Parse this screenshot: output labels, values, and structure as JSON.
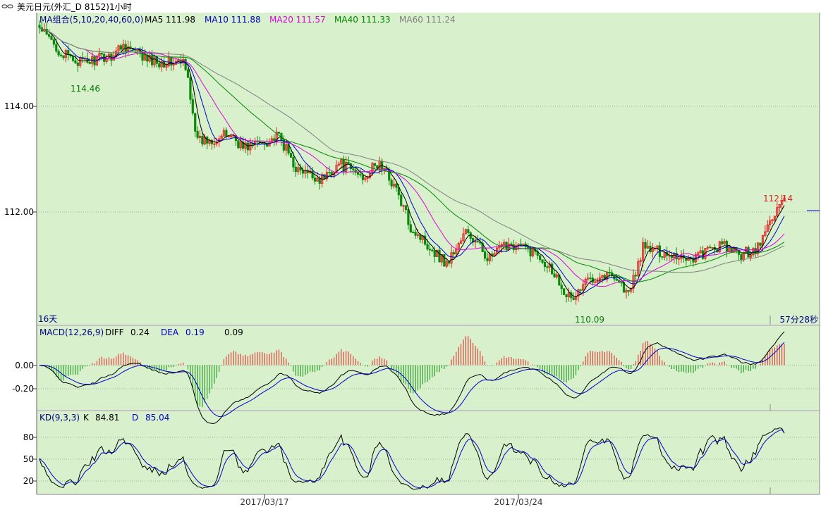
{
  "window": {
    "title": "美元日元(外汇_D 8152)1小时",
    "icon": "link-icon"
  },
  "colors": {
    "background": "#d8f1cc",
    "rise": "#e02020",
    "fall": "#0a8a0a",
    "ma5": "#000000",
    "ma10": "#0000cc",
    "ma20": "#e000e0",
    "ma40": "#008800",
    "ma60": "#808080"
  },
  "main": {
    "header": {
      "label": "MA组合(5,10,20,40,60,0)",
      "ma5": "MA5 111.98",
      "ma10": "MA10 111.88",
      "ma20": "MA20 111.57",
      "ma40": "MA40 111.33",
      "ma60": "MA60 111.24"
    },
    "y_ticks": [
      "114.00",
      "112.00"
    ],
    "high_label": "114.46",
    "low_label": "110.09",
    "last_label": "112.14",
    "bottom_left": "16天",
    "countdown": "57分28秒"
  },
  "macd": {
    "header": {
      "label": "MACD(12,26,9)",
      "diff_label": "DIFF",
      "diff": "0.24",
      "dea_label": "DEA",
      "dea": "0.19",
      "macd": "0.09"
    },
    "y_ticks": [
      "0.00",
      "-0.20"
    ]
  },
  "kd": {
    "header": {
      "label": "KD(9,3,3)",
      "k_label": "K",
      "k": "84.81",
      "d_label": "D",
      "d": "85.04"
    },
    "y_ticks": [
      "80",
      "50",
      "20"
    ]
  },
  "x_labels": [
    "2017/03/17",
    "2017/03/24"
  ],
  "chart_data": {
    "type": "candlestick",
    "price_keypoints": [
      {
        "i": 0,
        "v": 115.35
      },
      {
        "i": 10,
        "v": 114.85
      },
      {
        "i": 18,
        "v": 114.7
      },
      {
        "i": 30,
        "v": 114.85
      },
      {
        "i": 35,
        "v": 115.05
      },
      {
        "i": 45,
        "v": 114.75
      },
      {
        "i": 60,
        "v": 114.7
      },
      {
        "i": 62,
        "v": 114.4
      },
      {
        "i": 66,
        "v": 113.2
      },
      {
        "i": 80,
        "v": 113.35
      },
      {
        "i": 85,
        "v": 113.1
      },
      {
        "i": 100,
        "v": 113.3
      },
      {
        "i": 108,
        "v": 112.65
      },
      {
        "i": 118,
        "v": 112.5
      },
      {
        "i": 125,
        "v": 112.8
      },
      {
        "i": 135,
        "v": 112.55
      },
      {
        "i": 142,
        "v": 112.8
      },
      {
        "i": 148,
        "v": 112.4
      },
      {
        "i": 155,
        "v": 111.6
      },
      {
        "i": 170,
        "v": 110.9
      },
      {
        "i": 178,
        "v": 111.5
      },
      {
        "i": 188,
        "v": 111.0
      },
      {
        "i": 196,
        "v": 111.3
      },
      {
        "i": 208,
        "v": 111.1
      },
      {
        "i": 214,
        "v": 110.8
      },
      {
        "i": 222,
        "v": 110.2
      },
      {
        "i": 230,
        "v": 110.65
      },
      {
        "i": 240,
        "v": 110.7
      },
      {
        "i": 246,
        "v": 110.3
      },
      {
        "i": 252,
        "v": 111.2
      },
      {
        "i": 262,
        "v": 111.1
      },
      {
        "i": 272,
        "v": 111.0
      },
      {
        "i": 285,
        "v": 111.25
      },
      {
        "i": 292,
        "v": 111.05
      },
      {
        "i": 300,
        "v": 111.2
      },
      {
        "i": 306,
        "v": 111.8
      },
      {
        "i": 311,
        "v": 112.14
      }
    ],
    "bar_count": 312,
    "y_range": [
      109.8,
      115.6
    ],
    "ma_periods": [
      5,
      10,
      20,
      40,
      60
    ],
    "macd_params": [
      12,
      26,
      9
    ],
    "macd_range": [
      -0.32,
      0.2
    ],
    "kd_params": [
      9,
      3,
      3
    ],
    "kd_range": [
      0,
      100
    ],
    "kd_last": {
      "k": 84.81,
      "d": 85.04
    },
    "grid": "dotted horizontal"
  }
}
